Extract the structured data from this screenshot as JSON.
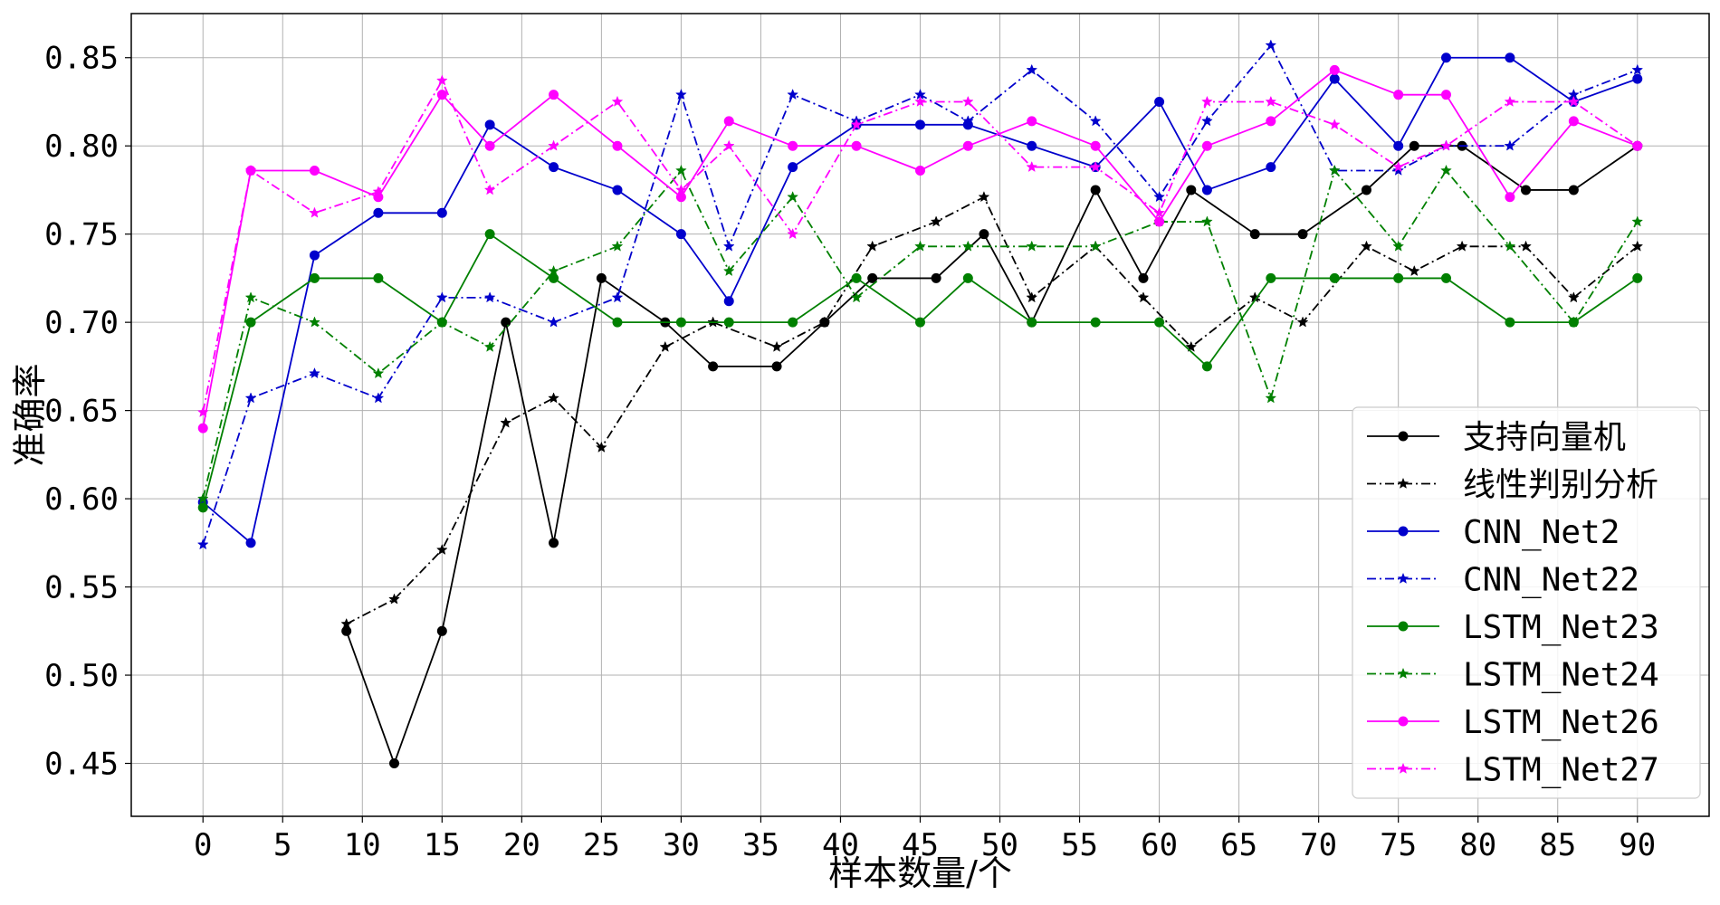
{
  "chart_data": {
    "type": "line",
    "xlabel": "样本数量/个",
    "ylabel": "准确率",
    "xlim": [
      -4.5,
      94.5
    ],
    "ylim": [
      0.42,
      0.875
    ],
    "xticks": [
      0,
      5,
      10,
      15,
      20,
      25,
      30,
      35,
      40,
      45,
      50,
      55,
      60,
      65,
      70,
      75,
      80,
      85,
      90
    ],
    "yticks": [
      0.45,
      0.5,
      0.55,
      0.6,
      0.65,
      0.7,
      0.75,
      0.8,
      0.85
    ],
    "ytick_labels": [
      "0.45",
      "0.50",
      "0.55",
      "0.60",
      "0.65",
      "0.70",
      "0.75",
      "0.80",
      "0.85"
    ],
    "grid": true,
    "legend_position": "lower-right",
    "series": [
      {
        "name": "支持向量机",
        "color": "#000000",
        "linestyle": "solid",
        "marker": "circle",
        "x": [
          9,
          12,
          15,
          19,
          22,
          25,
          29,
          32,
          36,
          39,
          42,
          46,
          49,
          52,
          56,
          59,
          62,
          66,
          69,
          73,
          76,
          79,
          83,
          86,
          90
        ],
        "y": [
          0.525,
          0.45,
          0.525,
          0.7,
          0.575,
          0.725,
          0.7,
          0.675,
          0.675,
          0.7,
          0.725,
          0.725,
          0.75,
          0.7,
          0.775,
          0.725,
          0.775,
          0.75,
          0.75,
          0.775,
          0.8,
          0.8,
          0.775,
          0.775,
          0.8
        ]
      },
      {
        "name": "线性判别分析",
        "color": "#000000",
        "linestyle": "dashdot",
        "marker": "star",
        "x": [
          9,
          12,
          15,
          19,
          22,
          25,
          29,
          32,
          36,
          39,
          42,
          46,
          49,
          52,
          56,
          59,
          62,
          66,
          69,
          73,
          76,
          79,
          83,
          86,
          90
        ],
        "y": [
          0.529,
          0.543,
          0.571,
          0.643,
          0.657,
          0.629,
          0.686,
          0.7,
          0.686,
          0.7,
          0.743,
          0.757,
          0.771,
          0.714,
          0.743,
          0.714,
          0.686,
          0.714,
          0.7,
          0.743,
          0.729,
          0.743,
          0.743,
          0.714,
          0.743
        ]
      },
      {
        "name": "CNN_Net2",
        "color": "#0000cc",
        "linestyle": "solid",
        "marker": "circle",
        "x": [
          0,
          3,
          7,
          11,
          15,
          18,
          22,
          26,
          30,
          33,
          37,
          41,
          45,
          48,
          52,
          56,
          60,
          63,
          67,
          71,
          75,
          78,
          82,
          86,
          90
        ],
        "y": [
          0.598,
          0.575,
          0.738,
          0.762,
          0.762,
          0.812,
          0.788,
          0.775,
          0.75,
          0.712,
          0.788,
          0.812,
          0.812,
          0.812,
          0.8,
          0.788,
          0.825,
          0.775,
          0.788,
          0.838,
          0.8,
          0.85,
          0.85,
          0.825,
          0.838
        ]
      },
      {
        "name": "CNN_Net22",
        "color": "#0000cc",
        "linestyle": "dashdot",
        "marker": "star",
        "x": [
          0,
          3,
          7,
          11,
          15,
          18,
          22,
          26,
          30,
          33,
          37,
          41,
          45,
          48,
          52,
          56,
          60,
          63,
          67,
          71,
          75,
          78,
          82,
          86,
          90
        ],
        "y": [
          0.574,
          0.657,
          0.671,
          0.657,
          0.714,
          0.714,
          0.7,
          0.714,
          0.829,
          0.743,
          0.829,
          0.814,
          0.829,
          0.814,
          0.843,
          0.814,
          0.771,
          0.814,
          0.857,
          0.786,
          0.786,
          0.8,
          0.8,
          0.829,
          0.843
        ]
      },
      {
        "name": "LSTM_Net23",
        "color": "#008000",
        "linestyle": "solid",
        "marker": "circle",
        "x": [
          0,
          3,
          7,
          11,
          15,
          18,
          22,
          26,
          30,
          33,
          37,
          41,
          45,
          48,
          52,
          56,
          60,
          63,
          67,
          71,
          75,
          78,
          82,
          86,
          90
        ],
        "y": [
          0.595,
          0.7,
          0.725,
          0.725,
          0.7,
          0.75,
          0.725,
          0.7,
          0.7,
          0.7,
          0.7,
          0.725,
          0.7,
          0.725,
          0.7,
          0.7,
          0.7,
          0.675,
          0.725,
          0.725,
          0.725,
          0.725,
          0.7,
          0.7,
          0.725
        ]
      },
      {
        "name": "LSTM_Net24",
        "color": "#008000",
        "linestyle": "dashdot",
        "marker": "star",
        "x": [
          0,
          3,
          7,
          11,
          15,
          18,
          22,
          26,
          30,
          33,
          37,
          41,
          45,
          48,
          52,
          56,
          60,
          63,
          67,
          71,
          75,
          78,
          82,
          86,
          90
        ],
        "y": [
          0.6,
          0.714,
          0.7,
          0.671,
          0.7,
          0.686,
          0.729,
          0.743,
          0.786,
          0.729,
          0.771,
          0.714,
          0.743,
          0.743,
          0.743,
          0.743,
          0.757,
          0.757,
          0.657,
          0.786,
          0.743,
          0.786,
          0.743,
          0.7,
          0.757
        ]
      },
      {
        "name": "LSTM_Net26",
        "color": "#ff00ff",
        "linestyle": "solid",
        "marker": "circle",
        "x": [
          0,
          3,
          7,
          11,
          15,
          18,
          22,
          26,
          30,
          33,
          37,
          41,
          45,
          48,
          52,
          56,
          60,
          63,
          67,
          71,
          75,
          78,
          82,
          86,
          90
        ],
        "y": [
          0.64,
          0.786,
          0.786,
          0.771,
          0.829,
          0.8,
          0.829,
          0.8,
          0.771,
          0.814,
          0.8,
          0.8,
          0.786,
          0.8,
          0.814,
          0.8,
          0.757,
          0.8,
          0.814,
          0.843,
          0.829,
          0.829,
          0.771,
          0.814,
          0.8
        ]
      },
      {
        "name": "LSTM_Net27",
        "color": "#ff00ff",
        "linestyle": "dashdot",
        "marker": "star",
        "x": [
          0,
          3,
          7,
          11,
          15,
          18,
          22,
          26,
          30,
          33,
          37,
          41,
          45,
          48,
          52,
          56,
          60,
          63,
          67,
          71,
          75,
          78,
          82,
          86,
          90
        ],
        "y": [
          0.649,
          0.786,
          0.762,
          0.774,
          0.837,
          0.775,
          0.8,
          0.825,
          0.775,
          0.8,
          0.75,
          0.812,
          0.825,
          0.825,
          0.788,
          0.788,
          0.762,
          0.825,
          0.825,
          0.812,
          0.788,
          0.8,
          0.825,
          0.825,
          0.8
        ]
      }
    ]
  }
}
